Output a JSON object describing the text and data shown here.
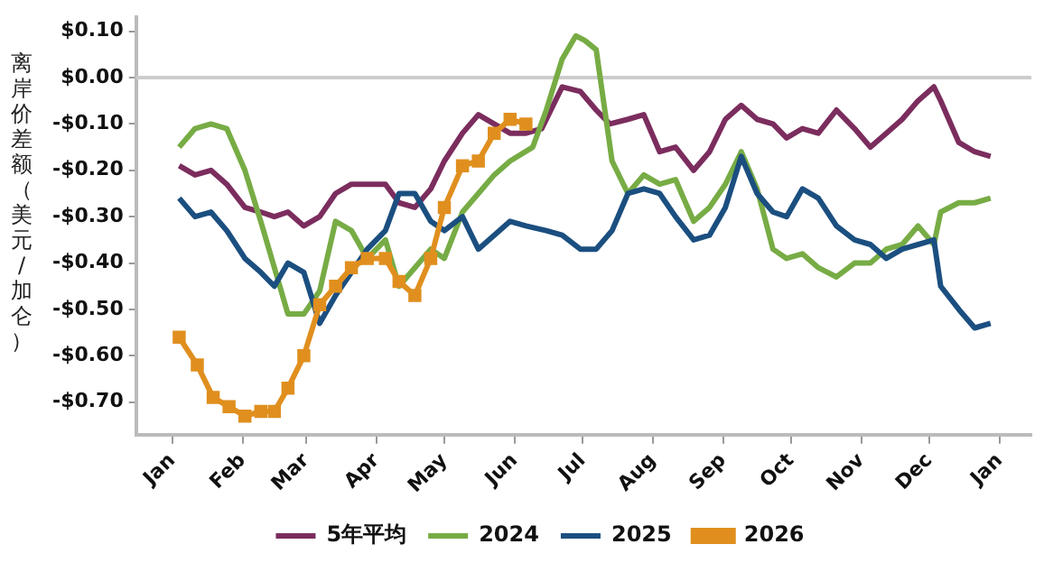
{
  "chart_data": {
    "type": "line",
    "ylabel": "离岸价差额（美元/加仑）",
    "legend": "bottom",
    "marker": "none",
    "line_style": "solid",
    "grid": false,
    "xlim": [
      "2025-12-16",
      "2027-01-15"
    ],
    "xticks": [
      {
        "value": "2026-01-01",
        "label": "Jan"
      },
      {
        "value": "2026-02-01",
        "label": "Feb"
      },
      {
        "value": "2026-03-01",
        "label": "Mar"
      },
      {
        "value": "2026-04-01",
        "label": "Apr"
      },
      {
        "value": "2026-05-01",
        "label": "May"
      },
      {
        "value": "2026-06-01",
        "label": "Jun"
      },
      {
        "value": "2026-07-01",
        "label": "Jul"
      },
      {
        "value": "2026-08-01",
        "label": "Aug"
      },
      {
        "value": "2026-09-01",
        "label": "Sep"
      },
      {
        "value": "2026-10-01",
        "label": "Oct"
      },
      {
        "value": "2026-11-01",
        "label": "Nov"
      },
      {
        "value": "2026-12-01",
        "label": "Dec"
      },
      {
        "value": "2027-01-01",
        "label": "Jan"
      }
    ],
    "ylim": [
      -0.77,
      0.13
    ],
    "yticks": [
      {
        "value": 0.1,
        "label": "$0.10"
      },
      {
        "value": 0,
        "label": "$0.00"
      },
      {
        "value": -0.1,
        "label": "-$0.10"
      },
      {
        "value": -0.2,
        "label": "-$0.20"
      },
      {
        "value": -0.3,
        "label": "-$0.30"
      },
      {
        "value": -0.4,
        "label": "-$0.40"
      },
      {
        "value": -0.5,
        "label": "-$0.50"
      },
      {
        "value": -0.6,
        "label": "-$0.60"
      },
      {
        "value": -0.7,
        "label": "-$0.70"
      }
    ],
    "ref_lines": [
      {
        "axis": "y",
        "value": 0,
        "color": "#cccccc"
      }
    ],
    "series": [
      {
        "name": "5年平均",
        "color": "#7b2d5e",
        "x": [
          "2026-01-04",
          "2026-01-11",
          "2026-01-18",
          "2026-01-25",
          "2026-02-02",
          "2026-02-09",
          "2026-02-15",
          "2026-02-21",
          "2026-02-28",
          "2026-03-07",
          "2026-03-14",
          "2026-03-21",
          "2026-03-28",
          "2026-04-05",
          "2026-04-11",
          "2026-04-18",
          "2026-04-25",
          "2026-05-01",
          "2026-05-09",
          "2026-05-16",
          "2026-05-23",
          "2026-05-30",
          "2026-06-06",
          "2026-06-13",
          "2026-06-22",
          "2026-06-30",
          "2026-07-07",
          "2026-07-13",
          "2026-07-21",
          "2026-07-28",
          "2026-08-04",
          "2026-08-11",
          "2026-08-19",
          "2026-08-26",
          "2026-09-02",
          "2026-09-09",
          "2026-09-16",
          "2026-09-23",
          "2026-09-29",
          "2026-10-06",
          "2026-10-13",
          "2026-10-21",
          "2026-10-29",
          "2026-11-05",
          "2026-11-12",
          "2026-11-19",
          "2026-11-26",
          "2026-12-03",
          "2026-12-06",
          "2026-12-14",
          "2026-12-21",
          "2026-12-28"
        ],
        "values": [
          -0.19,
          -0.21,
          -0.2,
          -0.23,
          -0.28,
          -0.29,
          -0.3,
          -0.29,
          -0.32,
          -0.3,
          -0.25,
          -0.23,
          -0.23,
          -0.23,
          -0.27,
          -0.28,
          -0.24,
          -0.18,
          -0.12,
          -0.08,
          -0.1,
          -0.12,
          -0.12,
          -0.11,
          -0.02,
          -0.03,
          -0.07,
          -0.1,
          -0.09,
          -0.08,
          -0.16,
          -0.15,
          -0.2,
          -0.16,
          -0.09,
          -0.06,
          -0.09,
          -0.1,
          -0.13,
          -0.11,
          -0.12,
          -0.07,
          -0.11,
          -0.15,
          -0.12,
          -0.09,
          -0.05,
          -0.02,
          -0.05,
          -0.14,
          -0.16,
          -0.17
        ]
      },
      {
        "name": "2024",
        "color": "#77ac45",
        "x": [
          "2026-01-04",
          "2026-01-11",
          "2026-01-18",
          "2026-01-25",
          "2026-02-02",
          "2026-02-09",
          "2026-02-15",
          "2026-02-21",
          "2026-02-28",
          "2026-03-07",
          "2026-03-14",
          "2026-03-21",
          "2026-03-28",
          "2026-04-05",
          "2026-04-11",
          "2026-04-18",
          "2026-04-25",
          "2026-05-01",
          "2026-05-09",
          "2026-05-16",
          "2026-05-23",
          "2026-05-30",
          "2026-06-09",
          "2026-06-15",
          "2026-06-22",
          "2026-06-28",
          "2026-07-02",
          "2026-07-07",
          "2026-07-14",
          "2026-07-21",
          "2026-07-28",
          "2026-08-04",
          "2026-08-11",
          "2026-08-19",
          "2026-08-26",
          "2026-09-02",
          "2026-09-09",
          "2026-09-16",
          "2026-09-23",
          "2026-09-29",
          "2026-10-06",
          "2026-10-13",
          "2026-10-21",
          "2026-10-29",
          "2026-11-05",
          "2026-11-12",
          "2026-11-19",
          "2026-11-26",
          "2026-12-03",
          "2026-12-06",
          "2026-12-14",
          "2026-12-21",
          "2026-12-28"
        ],
        "values": [
          -0.15,
          -0.11,
          -0.1,
          -0.11,
          -0.2,
          -0.31,
          -0.41,
          -0.51,
          -0.51,
          -0.46,
          -0.31,
          -0.33,
          -0.39,
          -0.35,
          -0.45,
          -0.41,
          -0.37,
          -0.39,
          -0.29,
          -0.25,
          -0.21,
          -0.18,
          -0.15,
          -0.07,
          0.04,
          0.09,
          0.08,
          0.06,
          -0.18,
          -0.25,
          -0.21,
          -0.23,
          -0.22,
          -0.31,
          -0.28,
          -0.23,
          -0.16,
          -0.24,
          -0.37,
          -0.39,
          -0.38,
          -0.41,
          -0.43,
          -0.4,
          -0.4,
          -0.37,
          -0.36,
          -0.32,
          -0.36,
          -0.29,
          -0.27,
          -0.27,
          -0.26
        ]
      },
      {
        "name": "2025",
        "color": "#1b4f80",
        "x": [
          "2026-01-04",
          "2026-01-11",
          "2026-01-18",
          "2026-01-25",
          "2026-02-02",
          "2026-02-09",
          "2026-02-15",
          "2026-02-21",
          "2026-02-28",
          "2026-03-07",
          "2026-03-14",
          "2026-03-21",
          "2026-03-28",
          "2026-04-05",
          "2026-04-11",
          "2026-04-18",
          "2026-04-25",
          "2026-05-01",
          "2026-05-09",
          "2026-05-16",
          "2026-05-23",
          "2026-05-30",
          "2026-06-06",
          "2026-06-15",
          "2026-06-22",
          "2026-06-30",
          "2026-07-07",
          "2026-07-14",
          "2026-07-21",
          "2026-07-28",
          "2026-08-04",
          "2026-08-11",
          "2026-08-19",
          "2026-08-26",
          "2026-09-02",
          "2026-09-09",
          "2026-09-16",
          "2026-09-23",
          "2026-09-29",
          "2026-10-06",
          "2026-10-13",
          "2026-10-21",
          "2026-10-29",
          "2026-11-05",
          "2026-11-12",
          "2026-11-19",
          "2026-11-26",
          "2026-12-03",
          "2026-12-06",
          "2026-12-14",
          "2026-12-21",
          "2026-12-28"
        ],
        "values": [
          -0.26,
          -0.3,
          -0.29,
          -0.33,
          -0.39,
          -0.42,
          -0.45,
          -0.4,
          -0.42,
          -0.53,
          -0.47,
          -0.42,
          -0.37,
          -0.33,
          -0.25,
          -0.25,
          -0.31,
          -0.33,
          -0.3,
          -0.37,
          -0.34,
          -0.31,
          -0.32,
          -0.33,
          -0.34,
          -0.37,
          -0.37,
          -0.33,
          -0.25,
          -0.24,
          -0.25,
          -0.3,
          -0.35,
          -0.34,
          -0.28,
          -0.17,
          -0.25,
          -0.29,
          -0.3,
          -0.24,
          -0.26,
          -0.32,
          -0.35,
          -0.36,
          -0.39,
          -0.37,
          -0.36,
          -0.35,
          -0.45,
          -0.5,
          -0.54,
          -0.53
        ]
      },
      {
        "name": "2026",
        "color": "#e08f1e",
        "marker": "square",
        "x": [
          "2026-01-04",
          "2026-01-12",
          "2026-01-19",
          "2026-01-26",
          "2026-02-02",
          "2026-02-09",
          "2026-02-15",
          "2026-02-21",
          "2026-02-28",
          "2026-03-07",
          "2026-03-14",
          "2026-03-21",
          "2026-03-28",
          "2026-04-05",
          "2026-04-11",
          "2026-04-18",
          "2026-04-25",
          "2026-05-01",
          "2026-05-09",
          "2026-05-16",
          "2026-05-23",
          "2026-05-30",
          "2026-06-06"
        ],
        "values": [
          -0.56,
          -0.62,
          -0.69,
          -0.71,
          -0.73,
          -0.72,
          -0.72,
          -0.67,
          -0.6,
          -0.49,
          -0.45,
          -0.41,
          -0.39,
          -0.39,
          -0.44,
          -0.47,
          -0.39,
          -0.28,
          -0.19,
          -0.18,
          -0.12,
          -0.09,
          -0.1
        ]
      }
    ]
  }
}
